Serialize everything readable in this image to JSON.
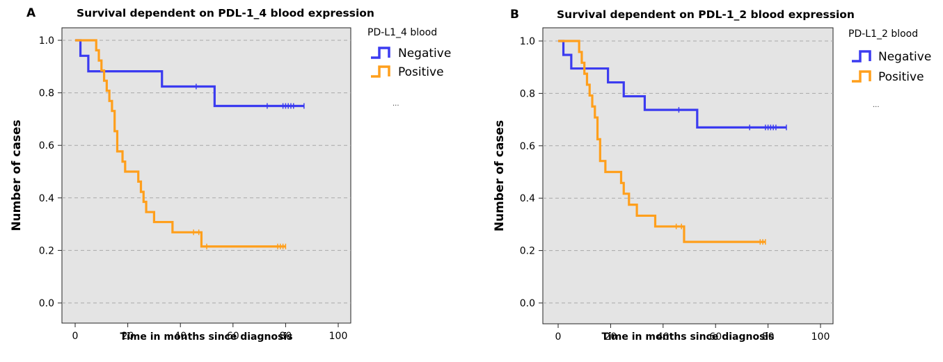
{
  "chart_data": [
    {
      "type": "line",
      "panel_label": "A",
      "title": "Survival dependent on PDL-1_4 blood expression",
      "xlabel": "Time in months since diagnosis",
      "ylabel": "Number of cases",
      "xlim": [
        0,
        100
      ],
      "ylim": [
        0,
        1
      ],
      "x_ticks": [
        "0",
        "20",
        "40",
        "60",
        "80",
        "100"
      ],
      "y_ticks": [
        "0.0",
        "0.2",
        "0.4",
        "0.6",
        "0.8",
        "1.0"
      ],
      "grid": "horizontal dashed",
      "legend": {
        "title": "PD-L1_4 blood",
        "position": "right",
        "note": "..."
      },
      "series": [
        {
          "name": "Negative",
          "color": "#3b3bf0",
          "steps": [
            [
              0,
              1.0
            ],
            [
              2,
              0.941
            ],
            [
              5,
              0.882
            ],
            [
              33,
              0.824
            ],
            [
              53,
              0.75
            ],
            [
              87,
              0.75
            ]
          ],
          "censored": [
            46,
            73,
            79,
            80,
            81,
            82,
            83,
            87
          ]
        },
        {
          "name": "Positive",
          "color": "#ff9f1c",
          "steps": [
            [
              0,
              1.0
            ],
            [
              8,
              0.962
            ],
            [
              9,
              0.923
            ],
            [
              10,
              0.885
            ],
            [
              11,
              0.846
            ],
            [
              12,
              0.808
            ],
            [
              13,
              0.769
            ],
            [
              14,
              0.731
            ],
            [
              15,
              0.654
            ],
            [
              16,
              0.577
            ],
            [
              18,
              0.538
            ],
            [
              19,
              0.5
            ],
            [
              24,
              0.462
            ],
            [
              25,
              0.423
            ],
            [
              26,
              0.385
            ],
            [
              27,
              0.346
            ],
            [
              30,
              0.308
            ],
            [
              37,
              0.269
            ],
            [
              48,
              0.215
            ],
            [
              80,
              0.215
            ]
          ],
          "censored": [
            45,
            47,
            50,
            77,
            78,
            79,
            80
          ]
        }
      ]
    },
    {
      "type": "line",
      "panel_label": "B",
      "title": "Survival dependent on PDL-1_2 blood expression",
      "xlabel": "Time in months since diagnosis",
      "ylabel": "Number of cases",
      "xlim": [
        0,
        100
      ],
      "ylim": [
        0,
        1
      ],
      "x_ticks": [
        "0",
        "20",
        "40",
        "60",
        "80",
        "100"
      ],
      "y_ticks": [
        "0.0",
        "0.2",
        "0.4",
        "0.6",
        "0.8",
        "1.0"
      ],
      "grid": "horizontal dashed",
      "legend": {
        "title": "PD-L1_2 blood",
        "position": "right",
        "note": "..."
      },
      "series": [
        {
          "name": "Negative",
          "color": "#3b3bf0",
          "steps": [
            [
              0,
              1.0
            ],
            [
              2,
              0.947
            ],
            [
              5,
              0.895
            ],
            [
              19,
              0.842
            ],
            [
              25,
              0.789
            ],
            [
              33,
              0.737
            ],
            [
              53,
              0.67
            ],
            [
              87,
              0.67
            ]
          ],
          "censored": [
            46,
            73,
            79,
            80,
            81,
            82,
            83,
            87
          ]
        },
        {
          "name": "Positive",
          "color": "#ff9f1c",
          "steps": [
            [
              0,
              1.0
            ],
            [
              8,
              0.958
            ],
            [
              9,
              0.917
            ],
            [
              10,
              0.875
            ],
            [
              11,
              0.833
            ],
            [
              12,
              0.792
            ],
            [
              13,
              0.75
            ],
            [
              14,
              0.708
            ],
            [
              15,
              0.625
            ],
            [
              16,
              0.542
            ],
            [
              18,
              0.5
            ],
            [
              24,
              0.458
            ],
            [
              25,
              0.417
            ],
            [
              27,
              0.375
            ],
            [
              30,
              0.333
            ],
            [
              37,
              0.292
            ],
            [
              48,
              0.233
            ],
            [
              79,
              0.233
            ]
          ],
          "censored": [
            45,
            47,
            77,
            78,
            79
          ]
        }
      ]
    }
  ]
}
